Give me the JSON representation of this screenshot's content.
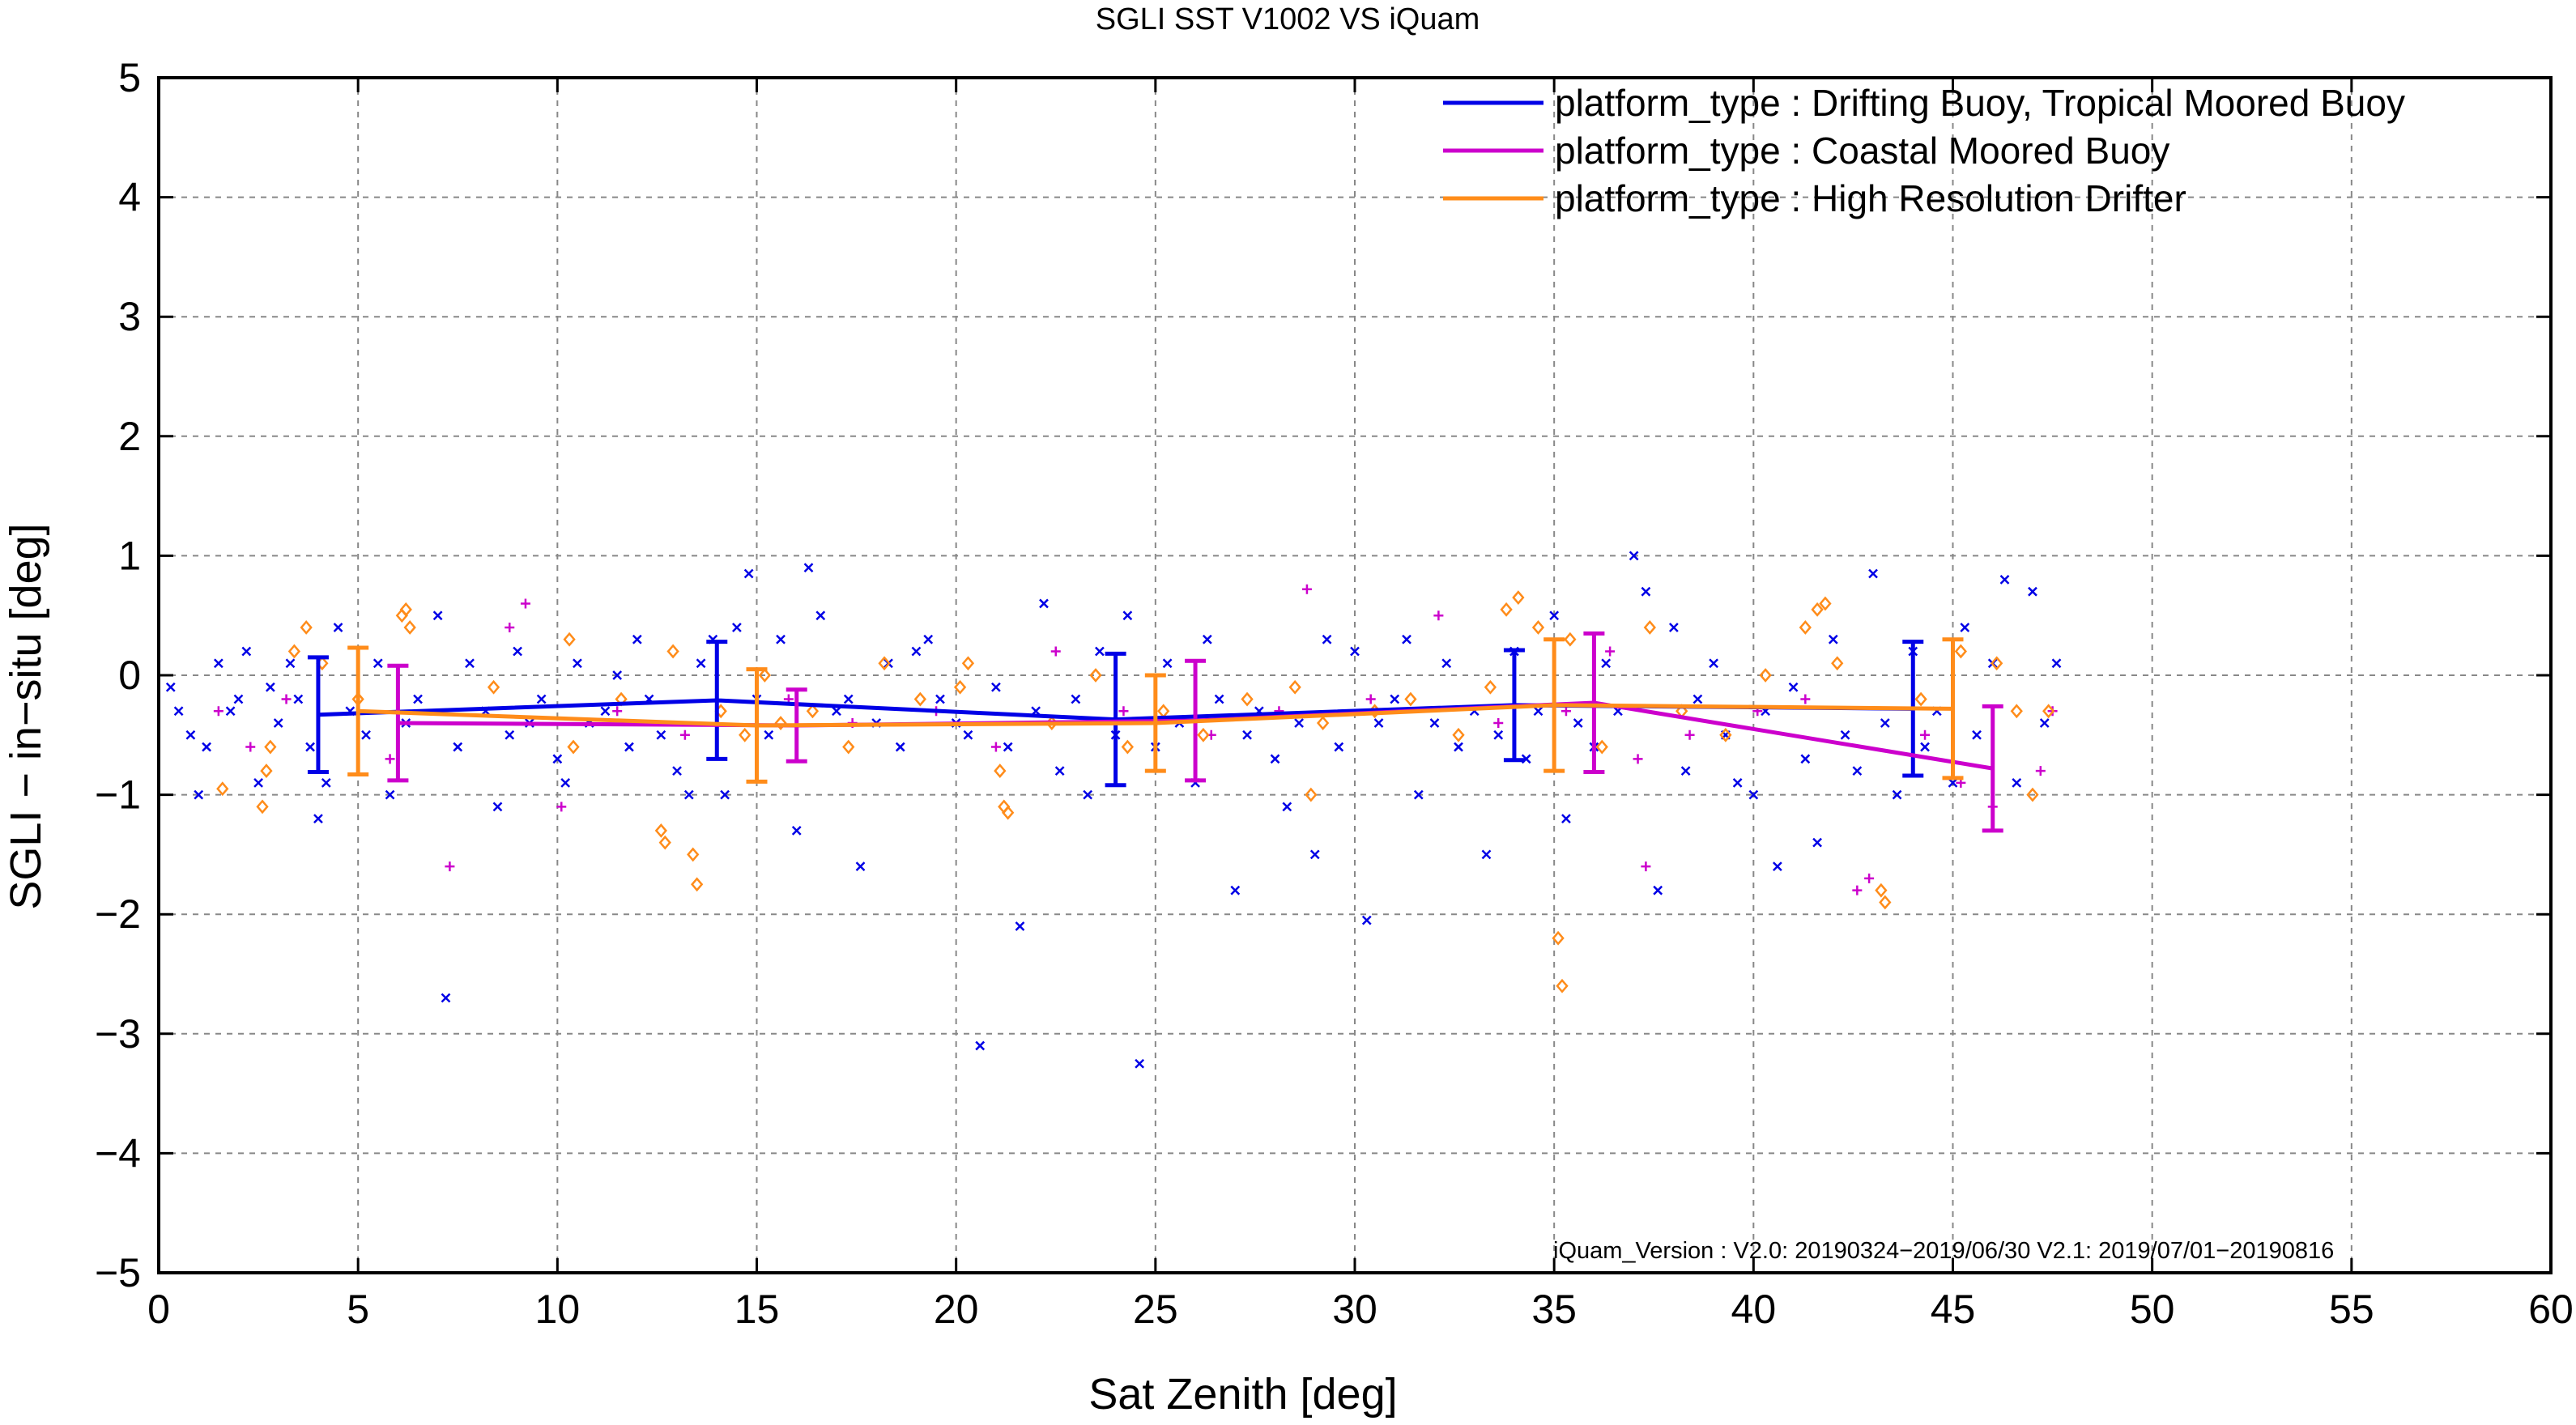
{
  "chart_data": {
    "type": "scatter",
    "title": "SGLI SST V1002 VS iQuam",
    "xlabel": "Sat Zenith [deg]",
    "ylabel": "SGLI − in−situ [deg]",
    "xlim": [
      0,
      60
    ],
    "ylim": [
      -5,
      5
    ],
    "x_ticks": [
      0,
      5,
      10,
      15,
      20,
      25,
      30,
      35,
      40,
      45,
      50,
      55,
      60
    ],
    "y_ticks": [
      -5,
      -4,
      -3,
      -2,
      -1,
      0,
      1,
      2,
      3,
      4,
      5
    ],
    "x_tick_labels": [
      "0",
      "5",
      "10",
      "15",
      "20",
      "25",
      "30",
      "35",
      "40",
      "45",
      "50",
      "55",
      "60"
    ],
    "y_tick_labels": [
      "−5",
      "−4",
      "−3",
      "−2",
      "−1",
      "0",
      "1",
      "2",
      "3",
      "4",
      "5"
    ],
    "grid": true,
    "legend_position": "top-right",
    "annotation": "iQuam_Version :   V2.0: 20190324−2019/06/30 V2.1: 2019/07/01−20190816",
    "series": [
      {
        "name": "platform_type : Drifting Buoy, Tropical Moored Buoy",
        "color": "#0000e6",
        "marker": "x",
        "mean_line": {
          "x": [
            4,
            14,
            24,
            34,
            44
          ],
          "y": [
            -0.33,
            -0.21,
            -0.37,
            -0.25,
            -0.28
          ],
          "err": [
            0.48,
            0.49,
            0.55,
            0.46,
            0.56
          ]
        },
        "points": [
          [
            0.3,
            -0.1
          ],
          [
            0.5,
            -0.3
          ],
          [
            0.8,
            -0.5
          ],
          [
            1.0,
            -1.0
          ],
          [
            1.2,
            -0.6
          ],
          [
            1.5,
            0.1
          ],
          [
            1.8,
            -0.3
          ],
          [
            2.0,
            -0.2
          ],
          [
            2.2,
            0.2
          ],
          [
            2.5,
            -0.9
          ],
          [
            2.8,
            -0.1
          ],
          [
            3.0,
            -0.4
          ],
          [
            3.3,
            0.1
          ],
          [
            3.5,
            -0.2
          ],
          [
            3.8,
            -0.6
          ],
          [
            4.0,
            -1.2
          ],
          [
            4.2,
            -0.9
          ],
          [
            4.5,
            0.4
          ],
          [
            4.8,
            -0.3
          ],
          [
            5.2,
            -0.5
          ],
          [
            5.5,
            0.1
          ],
          [
            5.8,
            -1.0
          ],
          [
            6.2,
            -0.4
          ],
          [
            6.5,
            -0.2
          ],
          [
            7.0,
            0.5
          ],
          [
            7.2,
            -2.7
          ],
          [
            7.5,
            -0.6
          ],
          [
            7.8,
            0.1
          ],
          [
            8.2,
            -0.3
          ],
          [
            8.5,
            -1.1
          ],
          [
            8.8,
            -0.5
          ],
          [
            9.0,
            0.2
          ],
          [
            9.3,
            -0.4
          ],
          [
            9.6,
            -0.2
          ],
          [
            10.0,
            -0.7
          ],
          [
            10.2,
            -0.9
          ],
          [
            10.5,
            0.1
          ],
          [
            10.8,
            -0.4
          ],
          [
            11.2,
            -0.3
          ],
          [
            11.5,
            0.0
          ],
          [
            11.8,
            -0.6
          ],
          [
            12.0,
            0.3
          ],
          [
            12.3,
            -0.2
          ],
          [
            12.6,
            -0.5
          ],
          [
            13.0,
            -0.8
          ],
          [
            13.3,
            -1.0
          ],
          [
            13.6,
            0.1
          ],
          [
            13.9,
            0.3
          ],
          [
            14.2,
            -1.0
          ],
          [
            14.5,
            0.4
          ],
          [
            14.8,
            0.85
          ],
          [
            15.0,
            -0.2
          ],
          [
            15.3,
            -0.5
          ],
          [
            15.6,
            0.3
          ],
          [
            16.0,
            -1.3
          ],
          [
            16.3,
            0.9
          ],
          [
            16.6,
            0.5
          ],
          [
            17.0,
            -0.3
          ],
          [
            17.3,
            -0.2
          ],
          [
            17.6,
            -1.6
          ],
          [
            18.0,
            -0.4
          ],
          [
            18.3,
            0.1
          ],
          [
            18.6,
            -0.6
          ],
          [
            19.0,
            0.2
          ],
          [
            19.3,
            0.3
          ],
          [
            19.6,
            -0.2
          ],
          [
            20.0,
            -0.4
          ],
          [
            20.3,
            -0.5
          ],
          [
            20.6,
            -3.1
          ],
          [
            21.0,
            -0.1
          ],
          [
            21.3,
            -0.6
          ],
          [
            21.6,
            -2.1
          ],
          [
            22.0,
            -0.3
          ],
          [
            22.2,
            0.6
          ],
          [
            22.6,
            -0.8
          ],
          [
            23.0,
            -0.2
          ],
          [
            23.3,
            -1.0
          ],
          [
            23.6,
            0.2
          ],
          [
            24.0,
            -0.5
          ],
          [
            24.3,
            0.5
          ],
          [
            24.6,
            -3.25
          ],
          [
            25.0,
            -0.6
          ],
          [
            25.3,
            0.1
          ],
          [
            25.6,
            -0.4
          ],
          [
            26.0,
            -0.9
          ],
          [
            26.3,
            0.3
          ],
          [
            26.6,
            -0.2
          ],
          [
            27.0,
            -1.8
          ],
          [
            27.3,
            -0.5
          ],
          [
            27.6,
            -0.3
          ],
          [
            28.0,
            -0.7
          ],
          [
            28.3,
            -1.1
          ],
          [
            28.6,
            -0.4
          ],
          [
            29.0,
            -1.5
          ],
          [
            29.3,
            0.3
          ],
          [
            29.6,
            -0.6
          ],
          [
            30.0,
            0.2
          ],
          [
            30.3,
            -2.05
          ],
          [
            30.6,
            -0.4
          ],
          [
            31.0,
            -0.2
          ],
          [
            31.3,
            0.3
          ],
          [
            31.6,
            -1.0
          ],
          [
            32.0,
            -0.4
          ],
          [
            32.3,
            0.1
          ],
          [
            32.6,
            -0.6
          ],
          [
            33.0,
            -0.3
          ],
          [
            33.3,
            -1.5
          ],
          [
            33.6,
            -0.5
          ],
          [
            34.0,
            0.2
          ],
          [
            34.3,
            -0.7
          ],
          [
            34.6,
            -0.3
          ],
          [
            35.0,
            0.5
          ],
          [
            35.3,
            -1.2
          ],
          [
            35.6,
            -0.4
          ],
          [
            36.0,
            -0.6
          ],
          [
            36.3,
            0.1
          ],
          [
            36.6,
            -0.3
          ],
          [
            37.0,
            1.0
          ],
          [
            37.3,
            0.7
          ],
          [
            37.6,
            -1.8
          ],
          [
            38.0,
            0.4
          ],
          [
            38.3,
            -0.8
          ],
          [
            38.6,
            -0.2
          ],
          [
            39.0,
            0.1
          ],
          [
            39.3,
            -0.5
          ],
          [
            39.6,
            -0.9
          ],
          [
            40.0,
            -1.0
          ],
          [
            40.3,
            -0.3
          ],
          [
            40.6,
            -1.6
          ],
          [
            41.0,
            -0.1
          ],
          [
            41.3,
            -0.7
          ],
          [
            41.6,
            -1.4
          ],
          [
            42.0,
            0.3
          ],
          [
            42.3,
            -0.5
          ],
          [
            42.6,
            -0.8
          ],
          [
            43.0,
            0.85
          ],
          [
            43.3,
            -0.4
          ],
          [
            43.6,
            -1.0
          ],
          [
            44.0,
            0.2
          ],
          [
            44.3,
            -0.6
          ],
          [
            44.6,
            -0.3
          ],
          [
            45.0,
            -0.9
          ],
          [
            45.3,
            0.4
          ],
          [
            45.6,
            -0.5
          ],
          [
            46.0,
            0.1
          ],
          [
            46.3,
            0.8
          ],
          [
            46.6,
            -0.9
          ],
          [
            47.0,
            0.7
          ],
          [
            47.3,
            -0.4
          ],
          [
            47.6,
            0.1
          ]
        ]
      },
      {
        "name": "platform_type : Coastal Moored Buoy",
        "color": "#cc00cc",
        "marker": "+",
        "mean_line": {
          "x": [
            6,
            16,
            26,
            36,
            46
          ],
          "y": [
            -0.4,
            -0.42,
            -0.38,
            -0.23,
            -0.78
          ],
          "err": [
            0.48,
            0.3,
            0.5,
            0.58,
            0.52
          ]
        },
        "points": [
          [
            1.5,
            -0.3
          ],
          [
            2.3,
            -0.6
          ],
          [
            3.2,
            -0.2
          ],
          [
            5.8,
            -0.7
          ],
          [
            7.3,
            -1.6
          ],
          [
            8.8,
            0.4
          ],
          [
            9.2,
            0.6
          ],
          [
            10.1,
            -1.1
          ],
          [
            11.5,
            -0.3
          ],
          [
            13.2,
            -0.5
          ],
          [
            15.8,
            -0.2
          ],
          [
            17.4,
            -0.4
          ],
          [
            19.5,
            -0.3
          ],
          [
            21.0,
            -0.6
          ],
          [
            22.5,
            0.2
          ],
          [
            24.2,
            -0.3
          ],
          [
            26.4,
            -0.5
          ],
          [
            28.1,
            -0.3
          ],
          [
            28.8,
            0.72
          ],
          [
            30.4,
            -0.2
          ],
          [
            32.1,
            0.5
          ],
          [
            33.6,
            -0.4
          ],
          [
            35.3,
            -0.3
          ],
          [
            36.4,
            0.2
          ],
          [
            37.1,
            -0.7
          ],
          [
            37.3,
            -1.6
          ],
          [
            38.4,
            -0.5
          ],
          [
            40.1,
            -0.3
          ],
          [
            41.3,
            -0.2
          ],
          [
            42.6,
            -1.8
          ],
          [
            42.9,
            -1.7
          ],
          [
            44.3,
            -0.5
          ],
          [
            45.2,
            -0.9
          ],
          [
            46.0,
            -1.1
          ],
          [
            47.2,
            -0.8
          ],
          [
            47.5,
            -0.3
          ]
        ]
      },
      {
        "name": "platform_type : High Resolution Drifter",
        "color": "#ff8c1a",
        "marker": "diamond",
        "mean_line": {
          "x": [
            5,
            15,
            25,
            35,
            45
          ],
          "y": [
            -0.3,
            -0.42,
            -0.4,
            -0.25,
            -0.28
          ],
          "err": [
            0.53,
            0.47,
            0.4,
            0.55,
            0.58
          ]
        },
        "points": [
          [
            1.6,
            -0.95
          ],
          [
            2.6,
            -1.1
          ],
          [
            2.7,
            -0.8
          ],
          [
            2.8,
            -0.6
          ],
          [
            3.4,
            0.2
          ],
          [
            3.7,
            0.4
          ],
          [
            4.1,
            0.1
          ],
          [
            5.0,
            -0.2
          ],
          [
            6.1,
            0.5
          ],
          [
            6.2,
            0.55
          ],
          [
            6.3,
            0.4
          ],
          [
            8.4,
            -0.1
          ],
          [
            10.3,
            0.3
          ],
          [
            10.4,
            -0.6
          ],
          [
            11.6,
            -0.2
          ],
          [
            12.6,
            -1.3
          ],
          [
            12.7,
            -1.4
          ],
          [
            12.9,
            0.2
          ],
          [
            13.4,
            -1.5
          ],
          [
            13.5,
            -1.75
          ],
          [
            14.1,
            -0.3
          ],
          [
            14.7,
            -0.5
          ],
          [
            15.2,
            0.0
          ],
          [
            15.6,
            -0.4
          ],
          [
            16.4,
            -0.3
          ],
          [
            17.3,
            -0.6
          ],
          [
            18.2,
            0.1
          ],
          [
            19.1,
            -0.2
          ],
          [
            20.1,
            -0.1
          ],
          [
            20.3,
            0.1
          ],
          [
            21.1,
            -0.8
          ],
          [
            21.2,
            -1.1
          ],
          [
            21.3,
            -1.15
          ],
          [
            22.4,
            -0.4
          ],
          [
            23.5,
            0.0
          ],
          [
            24.3,
            -0.6
          ],
          [
            25.2,
            -0.3
          ],
          [
            26.2,
            -0.5
          ],
          [
            27.3,
            -0.2
          ],
          [
            28.5,
            -0.1
          ],
          [
            28.9,
            -1.0
          ],
          [
            29.2,
            -0.4
          ],
          [
            30.5,
            -0.3
          ],
          [
            31.4,
            -0.2
          ],
          [
            32.6,
            -0.5
          ],
          [
            33.4,
            -0.1
          ],
          [
            33.8,
            0.55
          ],
          [
            34.1,
            0.65
          ],
          [
            34.6,
            0.4
          ],
          [
            35.1,
            -2.2
          ],
          [
            35.2,
            -2.6
          ],
          [
            35.4,
            0.3
          ],
          [
            36.2,
            -0.6
          ],
          [
            37.4,
            0.4
          ],
          [
            38.2,
            -0.3
          ],
          [
            39.3,
            -0.5
          ],
          [
            40.3,
            0.0
          ],
          [
            41.3,
            0.4
          ],
          [
            41.6,
            0.55
          ],
          [
            41.8,
            0.6
          ],
          [
            42.1,
            0.1
          ],
          [
            43.2,
            -1.8
          ],
          [
            43.3,
            -1.9
          ],
          [
            44.2,
            -0.2
          ],
          [
            45.2,
            0.2
          ],
          [
            46.1,
            0.1
          ],
          [
            46.6,
            -0.3
          ],
          [
            47.0,
            -1.0
          ],
          [
            47.4,
            -0.3
          ]
        ]
      }
    ]
  }
}
